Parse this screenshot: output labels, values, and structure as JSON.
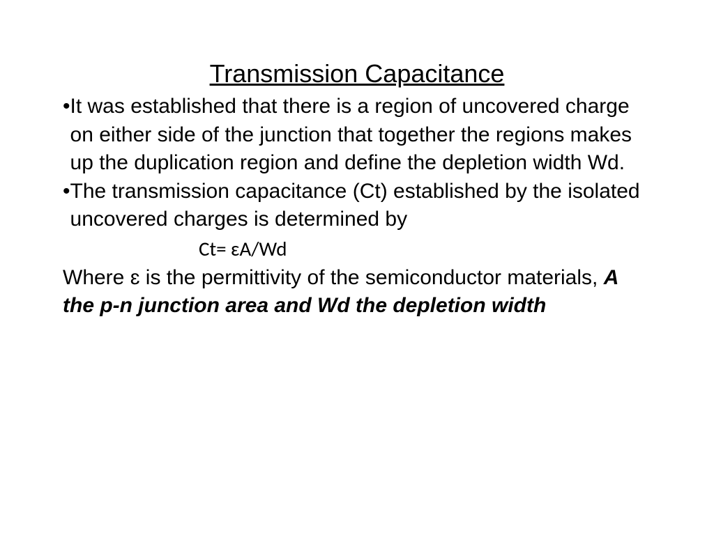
{
  "slide": {
    "title": "Transmission Capacitance",
    "bullet_marker": "•",
    "bullet1": "It was established that there is a region of uncovered charge on either side of the junction that together the regions makes up the duplication region and define the depletion width Wd.",
    "bullet2": "The transmission capacitance (Ct) established by the isolated uncovered charges is determined by",
    "formula": "Ct= ɛA/Wd",
    "where_part1": "Where ɛ is the permittivity of the semiconductor materials, ",
    "where_part2": "A the p-n junction area and Wd the depletion width"
  },
  "style": {
    "background_color": "#ffffff",
    "text_color": "#000000",
    "title_fontsize": 36,
    "body_fontsize": 30,
    "formula_fontsize": 29,
    "font_family": "Arial",
    "formula_font_family": "Calibri"
  }
}
